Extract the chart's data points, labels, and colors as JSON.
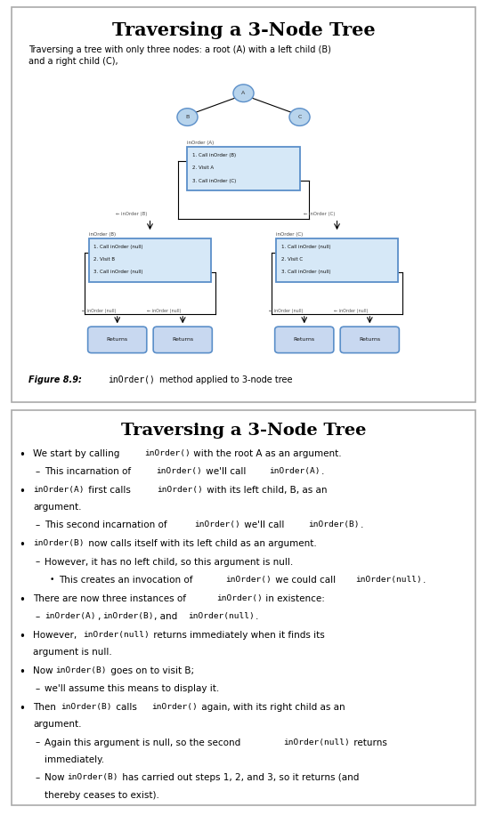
{
  "title1": "Traversing a 3-Node Tree",
  "subtitle1": "Traversing a tree with only three nodes: a root (A) with a left child (B)\nand a right child (C),",
  "figure_caption": "Figure 8.9:  inOrder()  method applied to 3-node tree",
  "title2": "Traversing a 3-Node Tree",
  "box_fill": "#d6e8f7",
  "box_edge": "#5b8fc9",
  "node_fill": "#b8d4ec",
  "node_edge": "#5b8fc9",
  "returns_fill": "#c8d8f0",
  "panel_edge": "#aaaaaa"
}
